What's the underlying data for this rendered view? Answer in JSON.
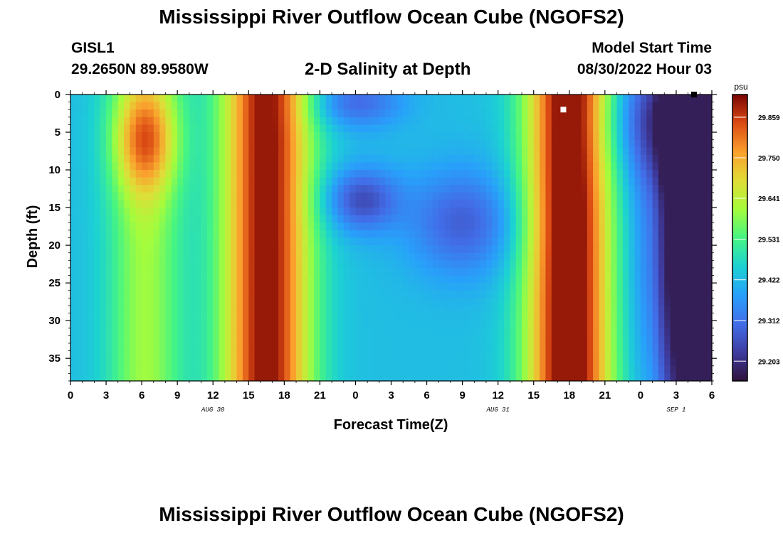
{
  "header": {
    "title": "Mississippi River Outflow Ocean Cube (NGOFS2)",
    "station_id": "GISL1",
    "station_location": "29.2650N  89.9580W",
    "subtitle": "2-D Salinity at Depth",
    "start_label": "Model Start Time",
    "start_value": "08/30/2022 Hour 03"
  },
  "footer": {
    "title": "Mississippi River Outflow Ocean Cube (NGOFS2)"
  },
  "chart_data": {
    "type": "heatmap",
    "title": "2-D Salinity at Depth",
    "xlabel": "Forecast Time(Z)",
    "ylabel": "Depth (ft)",
    "x_tick_labels": [
      "0",
      "3",
      "6",
      "9",
      "12",
      "15",
      "18",
      "21",
      "0",
      "3",
      "6",
      "9",
      "12",
      "15",
      "18",
      "21",
      "0",
      "3",
      "6"
    ],
    "x_range_hours": [
      0,
      54
    ],
    "date_labels": [
      {
        "hour": 12,
        "label": "AUG 30"
      },
      {
        "hour": 36,
        "label": "AUG 31"
      },
      {
        "hour": 51,
        "label": "SEP 1"
      }
    ],
    "y_ticks": [
      0,
      5,
      10,
      15,
      20,
      25,
      30,
      35
    ],
    "y_range": [
      0,
      38
    ],
    "y_inverted": true,
    "colorbar": {
      "unit": "psu",
      "ticks": [
        29.859,
        29.75,
        29.641,
        29.531,
        29.422,
        29.312,
        29.203
      ],
      "range": [
        29.15,
        29.92
      ]
    },
    "value_range": [
      29.15,
      29.92
    ],
    "grid": false,
    "markers": [
      {
        "hour": 41.5,
        "depth": 2,
        "color": "#ffffff"
      },
      {
        "hour": 52.5,
        "depth": 0,
        "color": "#000000"
      }
    ]
  }
}
